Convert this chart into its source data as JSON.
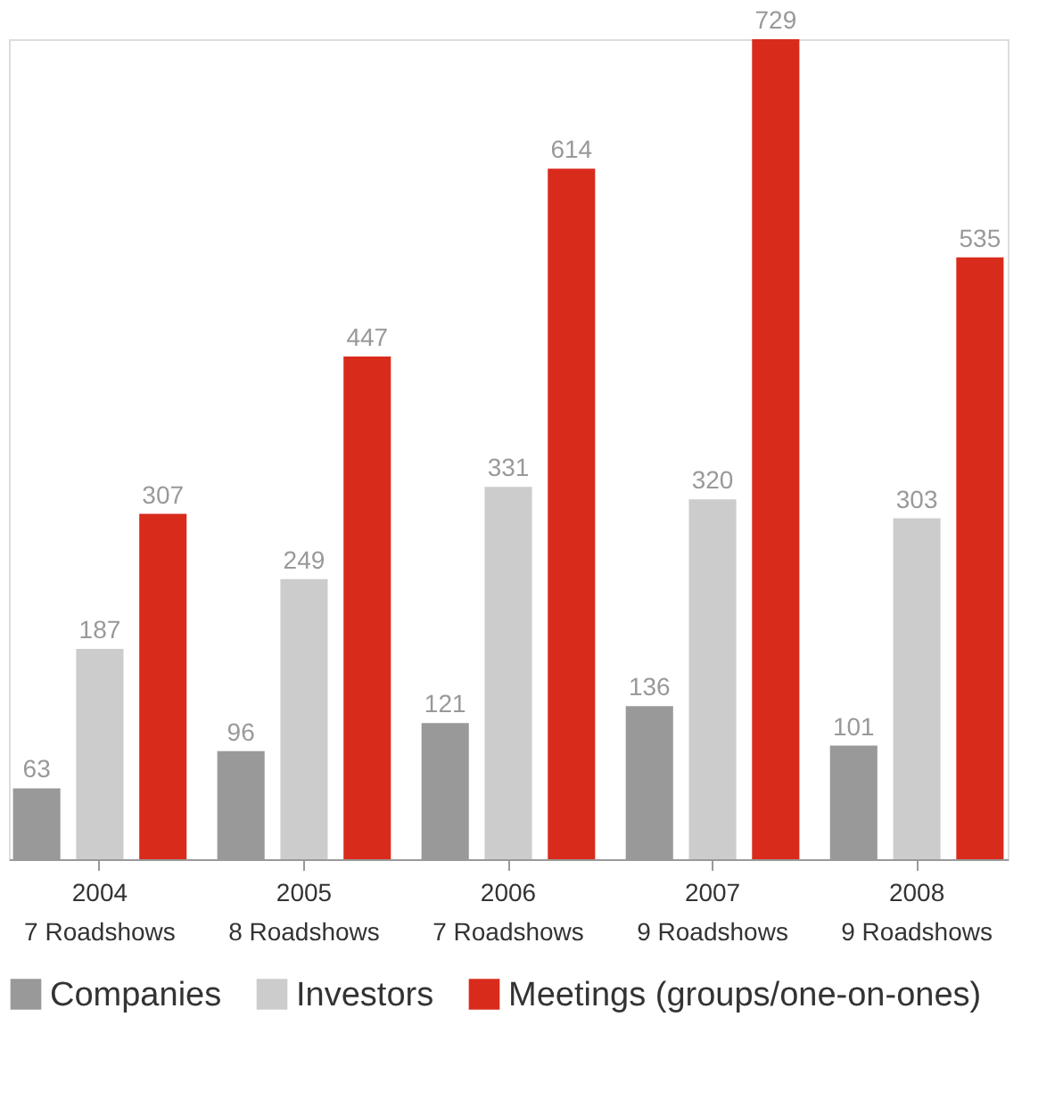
{
  "chart_data": {
    "type": "bar",
    "categories": [
      "2004\n7 Roadshows",
      "2005\n8 Roadshows",
      "2006\n7 Roadshows",
      "2007\n9 Roadshows",
      "2008\n9 Roadshows"
    ],
    "series": [
      {
        "name": "Companies",
        "color": "#999999",
        "values": [
          63,
          96,
          121,
          136,
          101
        ]
      },
      {
        "name": "Investors",
        "color": "#cccccc",
        "values": [
          187,
          249,
          331,
          320,
          303
        ]
      },
      {
        "name": "Meetings (groups/one-on-ones)",
        "color": "#d92b1c",
        "values": [
          307,
          447,
          614,
          729,
          535
        ]
      }
    ],
    "data_labels": true,
    "legend": "bottom",
    "grid": false
  }
}
